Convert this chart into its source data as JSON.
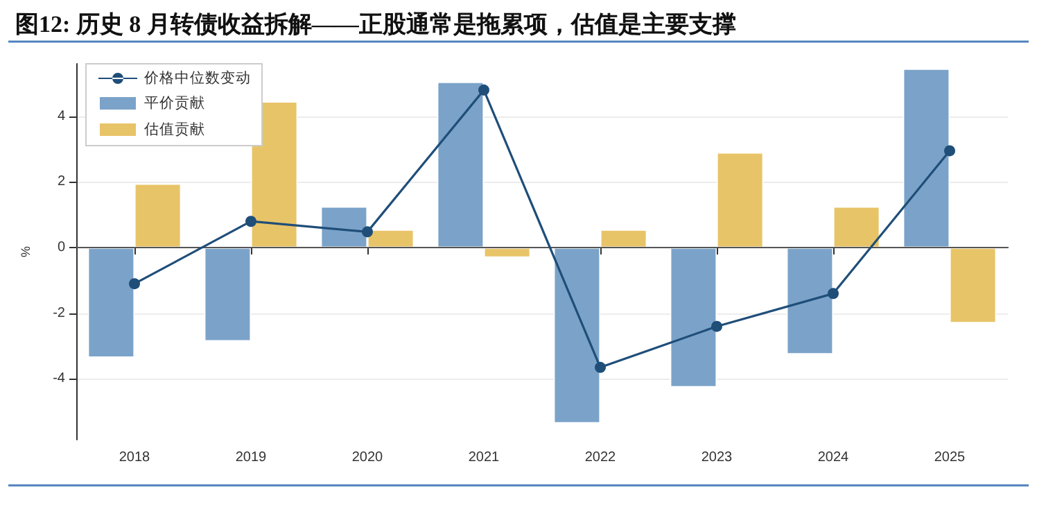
{
  "chart_data": {
    "type": "bar",
    "title": "图12: 历史 8 月转债收益拆解——正股通常是拖累项，估值是主要支撑",
    "ylabel": "%",
    "categories": [
      "2018",
      "2019",
      "2020",
      "2021",
      "2022",
      "2023",
      "2024",
      "2025"
    ],
    "series": [
      {
        "name": "价格中位数变动",
        "type": "line",
        "color": "#1f4e79",
        "values": [
          -1.1,
          0.8,
          0.48,
          4.8,
          -3.65,
          -2.4,
          -1.4,
          2.95
        ]
      },
      {
        "name": "平价贡献",
        "color": "#7ba3c9",
        "values": [
          -3.35,
          -2.85,
          1.25,
          5.05,
          -5.35,
          -4.25,
          -3.25,
          5.45
        ]
      },
      {
        "name": "估值贡献",
        "color": "#e8c468",
        "values": [
          1.95,
          4.45,
          0.55,
          -0.3,
          0.55,
          2.9,
          1.25,
          -2.3
        ]
      }
    ],
    "ylim": [
      -5.85,
      5.6
    ],
    "yticks": [
      -4,
      -2,
      0,
      2,
      4
    ],
    "grid": "y",
    "legend": "top left",
    "marker": "circle",
    "line_style": "solid"
  }
}
